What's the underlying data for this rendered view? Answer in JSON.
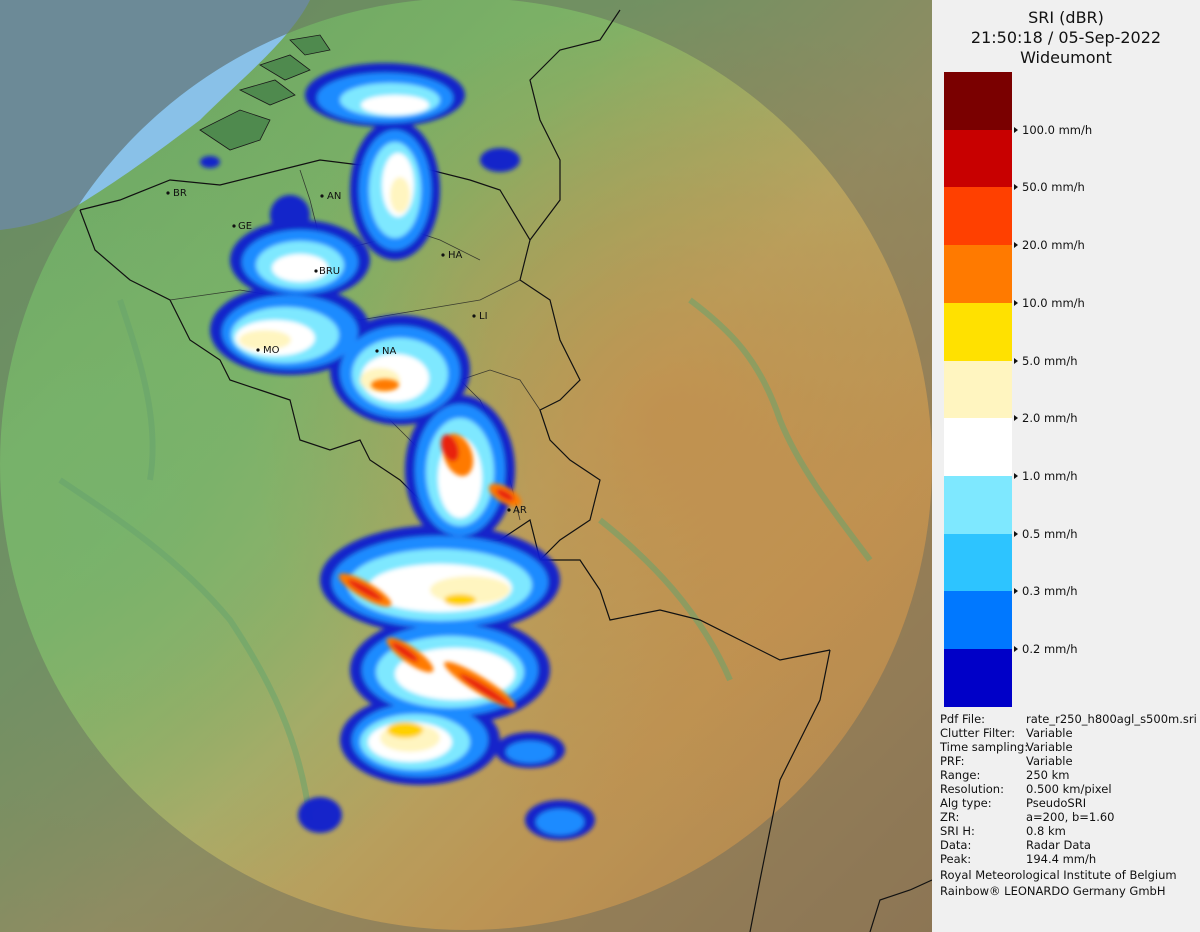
{
  "header": {
    "product": "SRI (dBR)",
    "datetime": "21:50:18 / 05-Sep-2022",
    "radar": "Wideumont"
  },
  "legend": [
    {
      "color": "#7a0000",
      "label": ""
    },
    {
      "color": "#c80000",
      "label": "100.0 mm/h"
    },
    {
      "color": "#ff4000",
      "label": "50.0 mm/h"
    },
    {
      "color": "#ff7a00",
      "label": "20.0 mm/h"
    },
    {
      "color": "#ffe100",
      "label": "10.0 mm/h"
    },
    {
      "color": "#fff5c0",
      "label": "5.0 mm/h"
    },
    {
      "color": "#ffffff",
      "label": "2.0 mm/h"
    },
    {
      "color": "#7ee8ff",
      "label": "1.0 mm/h"
    },
    {
      "color": "#2dc4ff",
      "label": "0.5 mm/h"
    },
    {
      "color": "#0078ff",
      "label": "0.3 mm/h"
    },
    {
      "color": "#0000c8",
      "label": "0.2 mm/h"
    }
  ],
  "info": [
    {
      "key": "Pdf File:",
      "value": "rate_r250_h800agl_s500m.sri"
    },
    {
      "key": "Clutter Filter:",
      "value": "Variable"
    },
    {
      "key": "Time sampling:",
      "value": "Variable"
    },
    {
      "key": "PRF:",
      "value": "Variable"
    },
    {
      "key": "Range:",
      "value": "250 km"
    },
    {
      "key": "Resolution:",
      "value": "0.500 km/pixel"
    },
    {
      "key": "Alg type:",
      "value": "PseudoSRI"
    },
    {
      "key": "ZR:",
      "value": "a=200, b=1.60"
    },
    {
      "key": "SRI H:",
      "value": "0.8 km"
    },
    {
      "key": "Data:",
      "value": "Radar Data"
    },
    {
      "key": "Peak:",
      "value": "194.4 mm/h"
    }
  ],
  "credits": [
    "Royal Meteorological Institute of Belgium",
    "Rainbow® LEONARDO Germany GmbH"
  ],
  "cities": [
    {
      "code": "BR"
    },
    {
      "code": "AN"
    },
    {
      "code": "GE"
    },
    {
      "code": "HA"
    },
    {
      "code": "BRU"
    },
    {
      "code": "LI"
    },
    {
      "code": "MO"
    },
    {
      "code": "NA"
    },
    {
      "code": "AR"
    }
  ],
  "colors": {
    "sea": "#6a9ed8",
    "range_ring_outside": "#7d8a6a",
    "panel_bg": "#f0f0f0"
  }
}
